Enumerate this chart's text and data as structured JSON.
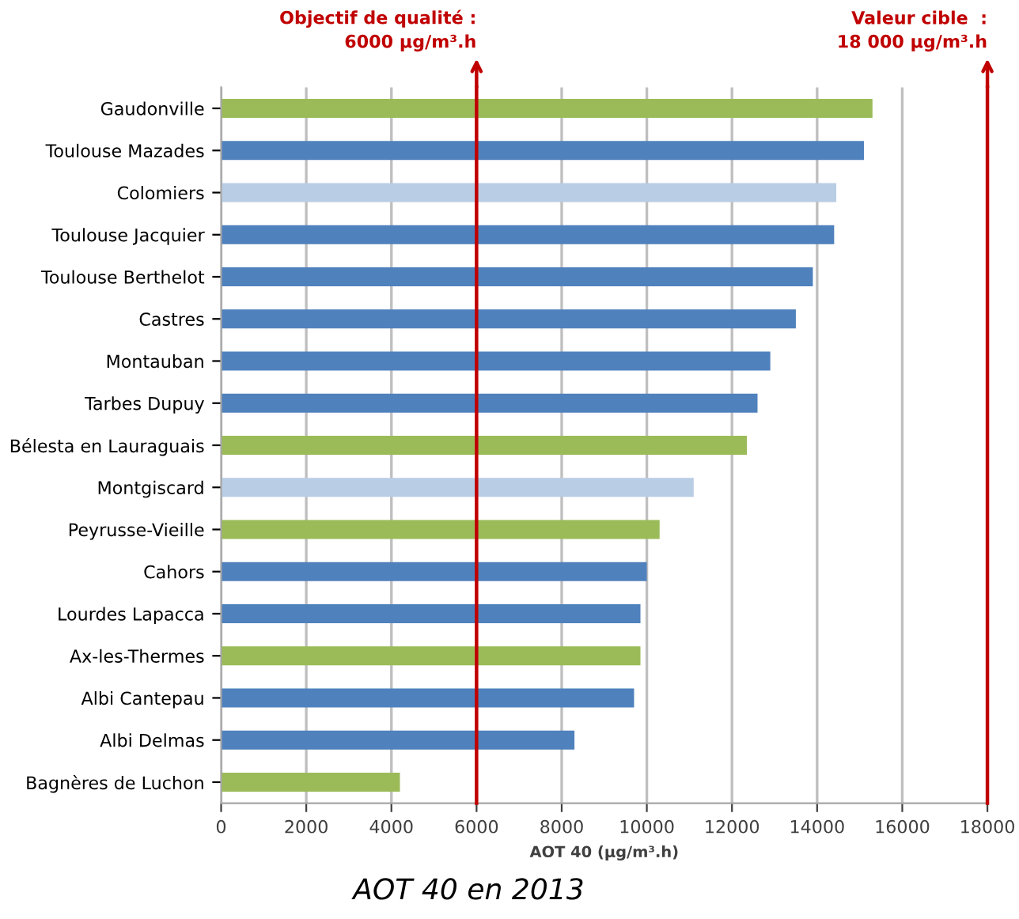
{
  "chart_data": {
    "type": "bar",
    "orientation": "horizontal",
    "title": "AOT 40 en 2013",
    "xlabel": "AOT 40 (µg/m³.h)",
    "categories": [
      "Gaudonville",
      "Toulouse Mazades",
      "Colomiers",
      "Toulouse Jacquier",
      "Toulouse Berthelot",
      "Castres",
      "Montauban",
      "Tarbes Dupuy",
      "Bélesta en Lauraguais",
      "Montgiscard",
      "Peyrusse-Vieille",
      "Cahors",
      "Lourdes Lapacca",
      "Ax-les-Thermes",
      "Albi Cantepau",
      "Albi Delmas",
      "Bagnères de Luchon"
    ],
    "values": [
      15300,
      15100,
      14450,
      14400,
      13900,
      13500,
      12900,
      12600,
      12350,
      11100,
      10300,
      10000,
      9850,
      9850,
      9700,
      8300,
      4200
    ],
    "colors": [
      "#9bbb59",
      "#4f81bd",
      "#b9cde5",
      "#4f81bd",
      "#4f81bd",
      "#4f81bd",
      "#4f81bd",
      "#4f81bd",
      "#9bbb59",
      "#b9cde5",
      "#9bbb59",
      "#4f81bd",
      "#4f81bd",
      "#9bbb59",
      "#4f81bd",
      "#4f81bd",
      "#9bbb59"
    ],
    "xlim": [
      0,
      18000
    ],
    "xticks": [
      0,
      2000,
      4000,
      6000,
      8000,
      10000,
      12000,
      14000,
      16000,
      18000
    ],
    "grid": "x",
    "ref_lines": [
      {
        "axis": "x",
        "value": 6000,
        "label": "Objectif de qualité :\n6000 µg/m³.h",
        "color": "#c00000"
      },
      {
        "axis": "x",
        "value": 18000,
        "label": "Valeur cible  :\n18 000 µg/m³.h",
        "color": "#c00000"
      }
    ]
  }
}
